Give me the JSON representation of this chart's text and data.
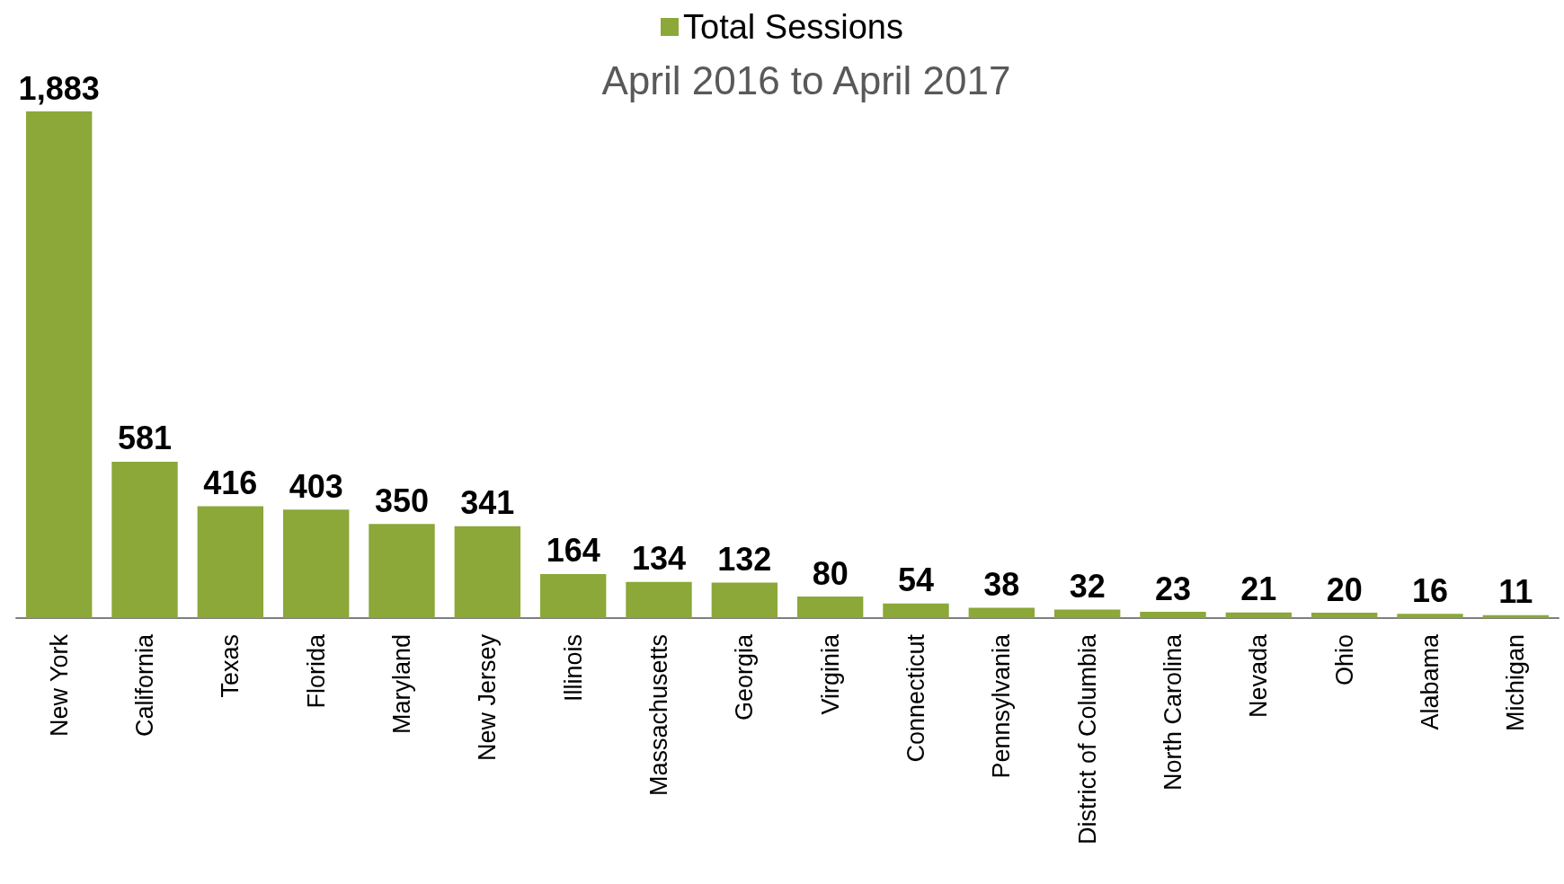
{
  "chart_data": {
    "type": "bar",
    "title": "April 2016 to April 2017",
    "categories": [
      "New York",
      "California",
      "Texas",
      "Florida",
      "Maryland",
      "New Jersey",
      "Illinois",
      "Massachusetts",
      "Georgia",
      "Virginia",
      "Connecticut",
      "Pennsylvania",
      "District of Columbia",
      "North Carolina",
      "Nevada",
      "Ohio",
      "Alabama",
      "Michigan"
    ],
    "series": [
      {
        "name": "Total Sessions",
        "color": "#8ba838",
        "values": [
          1883,
          581,
          416,
          403,
          350,
          341,
          164,
          134,
          132,
          80,
          54,
          38,
          32,
          23,
          21,
          20,
          16,
          11
        ],
        "value_labels": [
          "1,883",
          "581",
          "416",
          "403",
          "350",
          "341",
          "164",
          "134",
          "132",
          "80",
          "54",
          "38",
          "32",
          "23",
          "21",
          "20",
          "16",
          "11"
        ]
      }
    ],
    "legend": "top",
    "grid": false
  }
}
